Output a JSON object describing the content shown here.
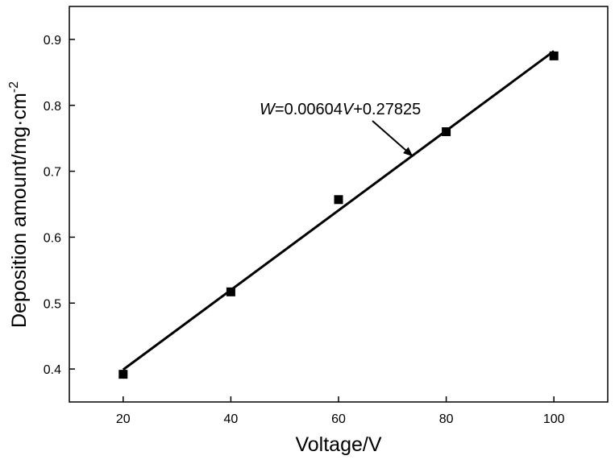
{
  "chart_data": {
    "type": "scatter",
    "xlabel": "Voltage/V",
    "ylabel_main": "Deposition amount/mg·cm",
    "ylabel_sup": "-2",
    "x_ticks": [
      "20",
      "40",
      "60",
      "80",
      "100"
    ],
    "y_ticks": [
      "0.4",
      "0.5",
      "0.6",
      "0.7",
      "0.8",
      "0.9"
    ],
    "xlim": [
      10,
      110
    ],
    "ylim": [
      0.35,
      0.95
    ],
    "points": [
      {
        "x": 20,
        "y": 0.392
      },
      {
        "x": 40,
        "y": 0.517
      },
      {
        "x": 60,
        "y": 0.657
      },
      {
        "x": 80,
        "y": 0.76
      },
      {
        "x": 100,
        "y": 0.875
      }
    ],
    "fit_line": {
      "slope": 0.00604,
      "intercept": 0.27825,
      "x_range": [
        20,
        100
      ],
      "color": "#000000"
    },
    "annotation": {
      "parts": [
        "W",
        "=0.00604",
        "V",
        "+0.27825"
      ],
      "arrow_to_x": 73
    },
    "marker_color": "#000000",
    "grid": false
  }
}
